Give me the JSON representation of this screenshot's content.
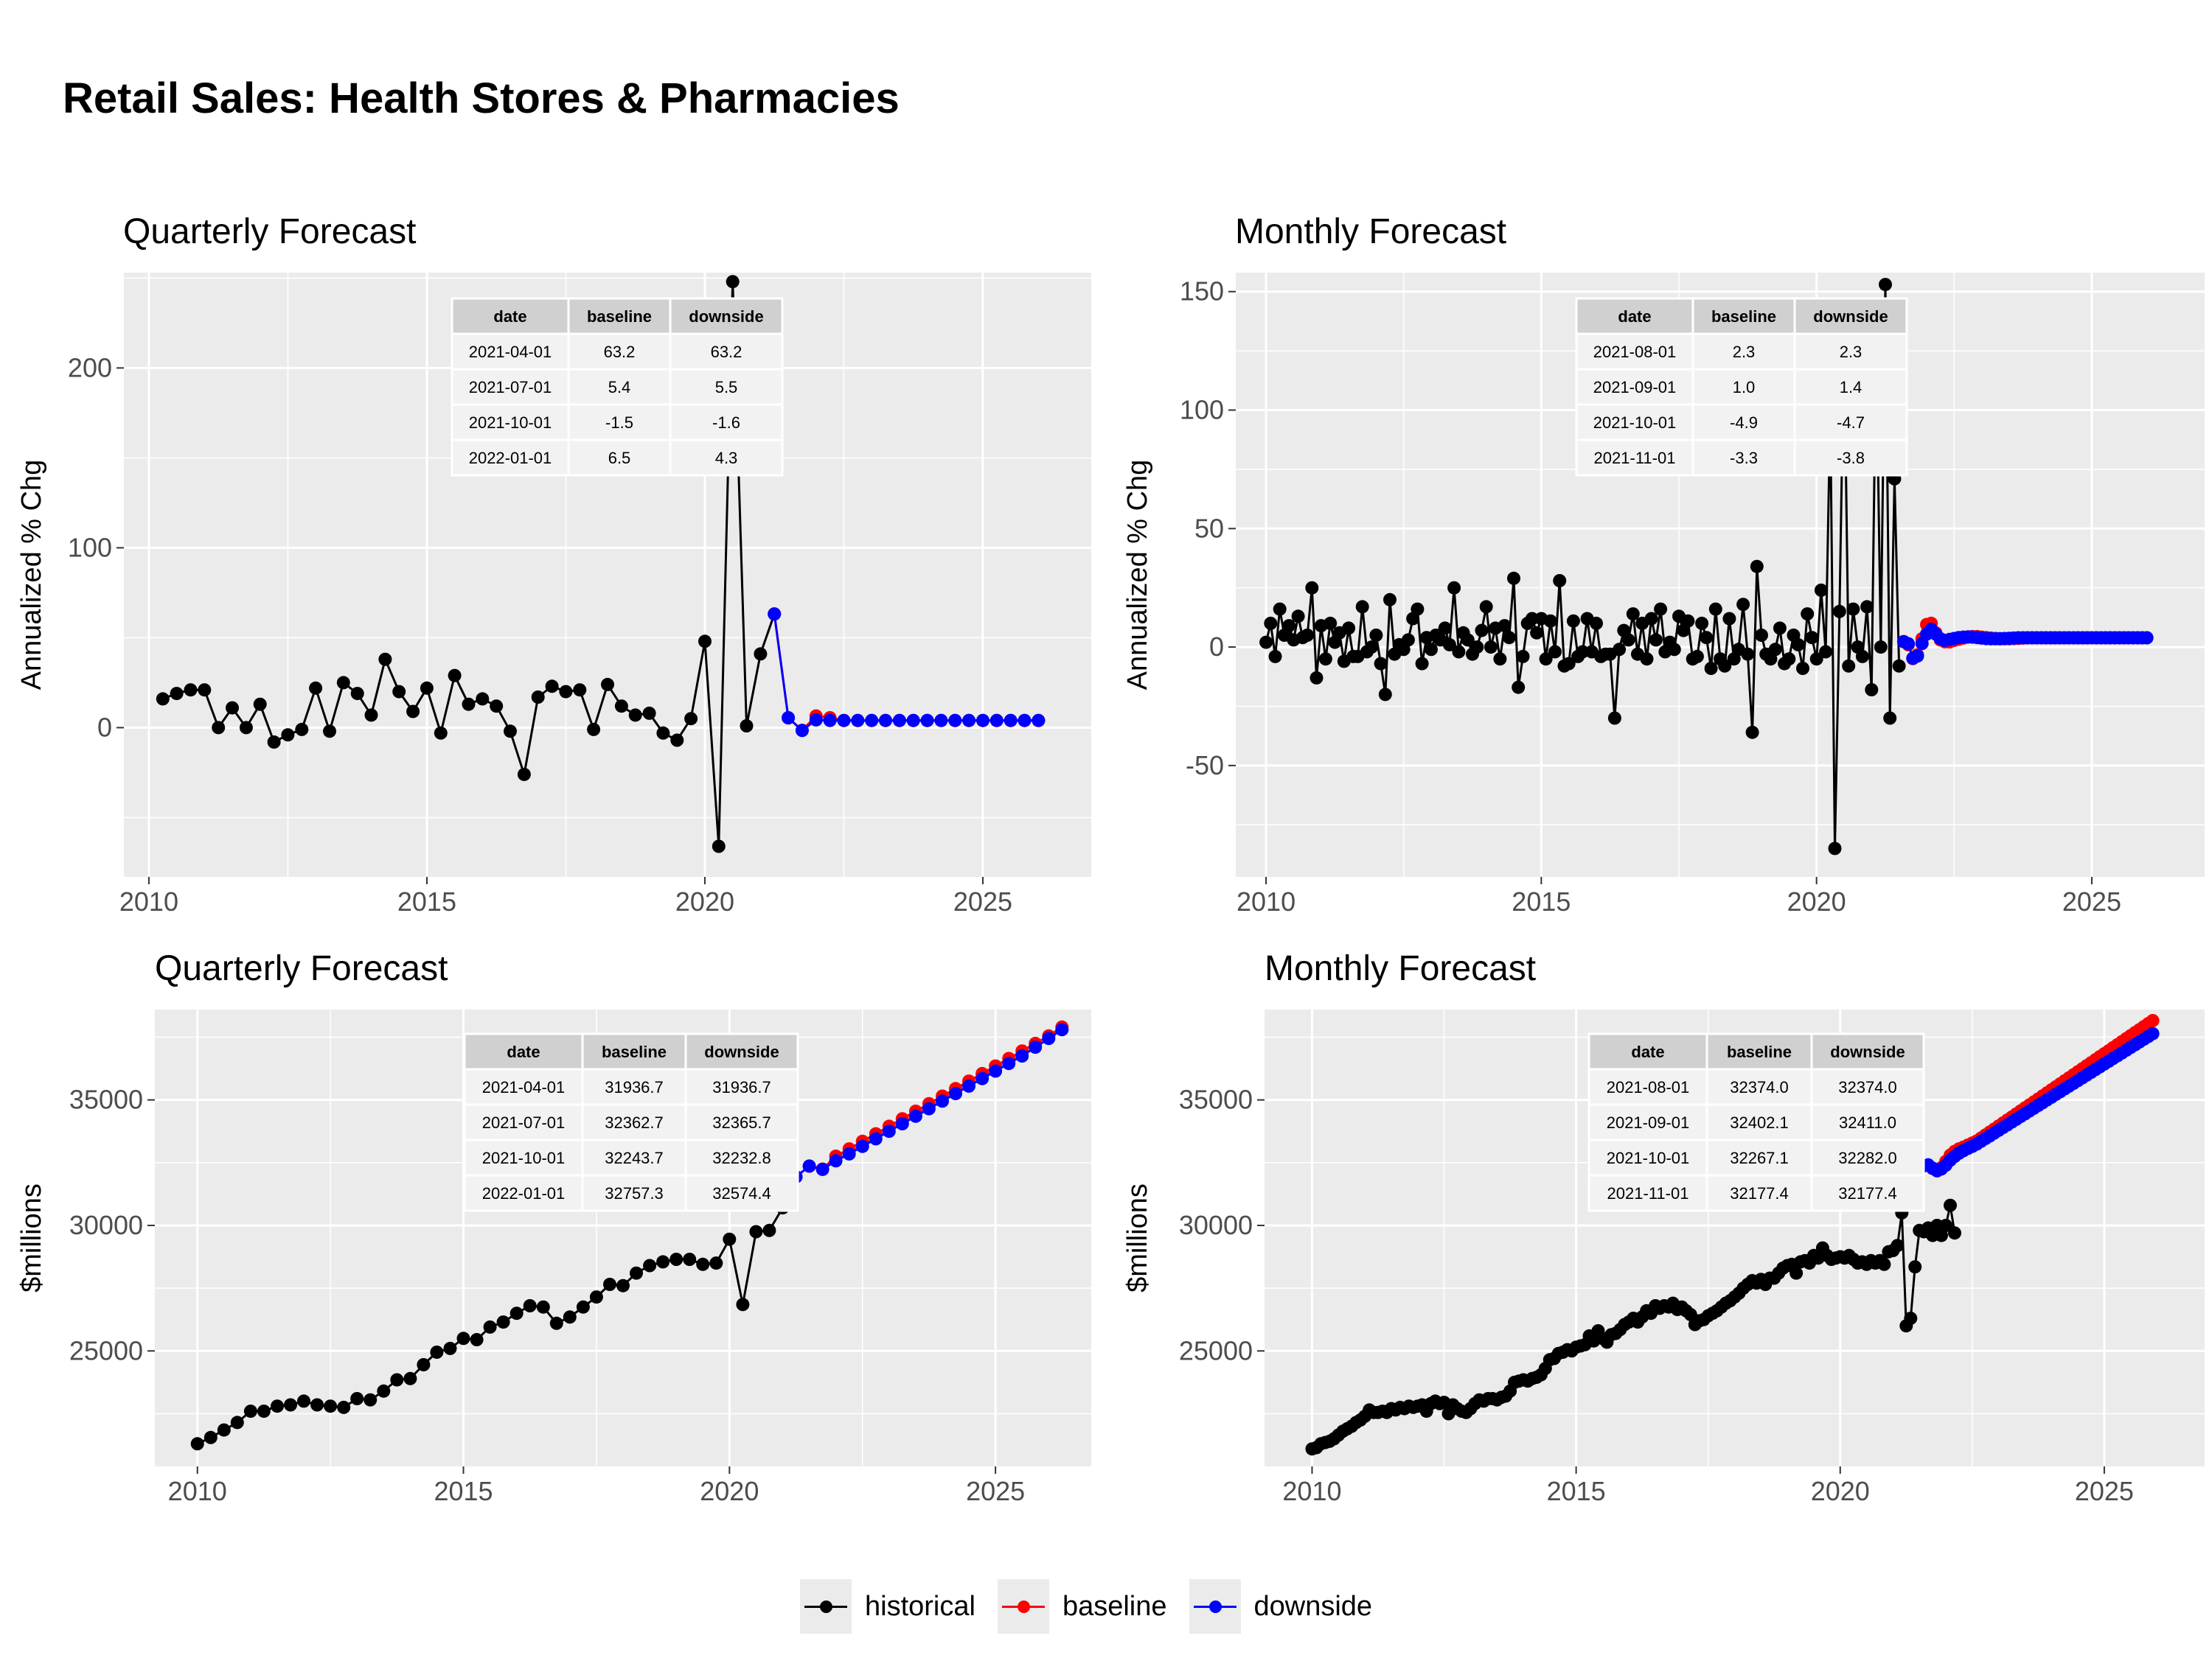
{
  "page": {
    "title": "Retail Sales: Health Stores & Pharmacies"
  },
  "colors": {
    "historical": "#000000",
    "baseline": "#ff0000",
    "downside": "#0000ff",
    "panel_bg": "#ebebeb",
    "grid": "#ffffff"
  },
  "legend": {
    "position": "bottom",
    "items": [
      {
        "label": "historical",
        "color": "#000000"
      },
      {
        "label": "baseline",
        "color": "#ff0000"
      },
      {
        "label": "downside",
        "color": "#0000ff"
      }
    ]
  },
  "chart_data": [
    {
      "id": "q_pct",
      "type": "line",
      "title": "Quarterly Forecast",
      "ylabel": "Annualized % Chg",
      "xlabel": "",
      "x_ticks": [
        2010,
        2015,
        2020,
        2025
      ],
      "y_ticks": [
        0,
        100,
        200
      ],
      "xlim": [
        2009.55,
        2026.95
      ],
      "ylim": [
        -83,
        253
      ],
      "grid": true,
      "series": [
        {
          "name": "historical",
          "color": "#000000",
          "x": [
            2010.25,
            2010.5,
            2010.75,
            2011,
            2011.25,
            2011.5,
            2011.75,
            2012,
            2012.25,
            2012.5,
            2012.75,
            2013,
            2013.25,
            2013.5,
            2013.75,
            2014,
            2014.25,
            2014.5,
            2014.75,
            2015,
            2015.25,
            2015.5,
            2015.75,
            2016,
            2016.25,
            2016.5,
            2016.75,
            2017,
            2017.25,
            2017.5,
            2017.75,
            2018,
            2018.25,
            2018.5,
            2018.75,
            2019,
            2019.25,
            2019.5,
            2019.75,
            2020,
            2020.25,
            2020.5,
            2020.75,
            2021,
            2021.25
          ],
          "y": [
            16,
            19,
            21,
            21,
            0,
            11,
            0,
            13,
            -8,
            -4,
            -1,
            22,
            -2,
            25,
            19,
            7,
            38,
            20,
            9,
            22,
            -3,
            29,
            13,
            16,
            12,
            -2,
            -26,
            17,
            23,
            20,
            21,
            -1,
            24,
            12,
            7,
            8,
            -3,
            -7,
            5,
            48,
            -66,
            248,
            1,
            41,
            63.2
          ]
        },
        {
          "name": "baseline",
          "color": "#ff0000",
          "x": [
            2021.25,
            2021.5,
            2021.75,
            2022,
            2022.25,
            2022.5,
            2022.75,
            2023,
            2023.25,
            2023.5,
            2023.75,
            2024,
            2024.25,
            2024.5,
            2024.75,
            2025,
            2025.25,
            2025.5,
            2025.75,
            2026
          ],
          "y": [
            63.2,
            5.4,
            -1.5,
            6.5,
            5.5,
            4,
            4,
            4,
            4,
            4,
            4,
            4,
            4,
            4,
            4,
            4,
            4,
            4,
            4,
            4
          ]
        },
        {
          "name": "downside",
          "color": "#0000ff",
          "x": [
            2021.25,
            2021.5,
            2021.75,
            2022,
            2022.25,
            2022.5,
            2022.75,
            2023,
            2023.25,
            2023.5,
            2023.75,
            2024,
            2024.25,
            2024.5,
            2024.75,
            2025,
            2025.25,
            2025.5,
            2025.75,
            2026
          ],
          "y": [
            63.2,
            5.5,
            -1.6,
            4.3,
            4,
            4,
            4,
            4,
            4,
            4,
            4,
            4,
            4,
            4,
            4,
            4,
            4,
            4,
            4,
            4
          ]
        }
      ],
      "table": {
        "columns": [
          "date",
          "baseline",
          "downside"
        ],
        "rows": [
          [
            "2021-04-01",
            "63.2",
            "63.2"
          ],
          [
            "2021-07-01",
            "5.4",
            "5.5"
          ],
          [
            "2021-10-01",
            "-1.5",
            "-1.6"
          ],
          [
            "2022-01-01",
            "6.5",
            "4.3"
          ]
        ]
      }
    },
    {
      "id": "m_pct",
      "type": "line",
      "title": "Monthly Forecast",
      "ylabel": "Annualized % Chg",
      "xlabel": "",
      "x_ticks": [
        2010,
        2015,
        2020,
        2025
      ],
      "y_ticks": [
        -50,
        0,
        50,
        100,
        150
      ],
      "xlim": [
        2009.45,
        2027.05
      ],
      "ylim": [
        -97,
        158
      ],
      "grid": true,
      "series": [
        {
          "name": "historical",
          "color": "#000000",
          "x_start": 2010,
          "x_step": 0.0833333,
          "y": [
            2,
            10,
            -4,
            16,
            5,
            9,
            3,
            13,
            4,
            5,
            25,
            -13,
            9,
            -5,
            10,
            2,
            6,
            -6,
            8,
            -4,
            -4,
            17,
            -2,
            0,
            5,
            -7,
            -20,
            20,
            -3,
            1,
            -1,
            3,
            12,
            16,
            -7,
            4,
            -1,
            5,
            3,
            8,
            1,
            25,
            -2,
            6,
            3,
            -3,
            0,
            7,
            17,
            0,
            8,
            -5,
            9,
            4,
            29,
            -17,
            -4,
            10,
            12,
            6,
            12,
            -5,
            11,
            -2,
            28,
            -8,
            -7,
            11,
            -4,
            -2,
            12,
            -2,
            10,
            -4,
            -3,
            -3,
            -30,
            -1,
            7,
            3,
            14,
            -3,
            10,
            -5,
            12,
            3,
            16,
            -2,
            2,
            -1,
            13,
            7,
            11,
            -5,
            -4,
            10,
            4,
            -9,
            16,
            -5,
            -8,
            12,
            -5,
            -1,
            18,
            -3,
            -36,
            34,
            5,
            -3,
            -5,
            -1,
            8,
            -7,
            -5,
            5,
            1,
            -9,
            14,
            4,
            -5,
            24,
            -2,
            100,
            -85,
            15,
            132,
            -8,
            16,
            0,
            -4,
            17,
            -18,
            130,
            0,
            153,
            -30,
            71,
            -8
          ]
        },
        {
          "name": "baseline",
          "color": "#ff0000",
          "x_start": 2021.5833,
          "x_step": 0.0833333,
          "y": [
            2.3,
            1.0,
            -4.9,
            -3.3,
            3.5,
            9.5,
            10,
            6,
            3,
            2.2,
            2.2,
            2.8,
            3.3,
            3.8,
            4.2,
            4.4,
            4.4,
            4.2,
            4,
            3.8,
            3.6,
            3.5,
            3.5,
            3.5,
            3.6,
            3.7,
            3.8,
            3.9,
            3.9,
            3.9,
            3.9,
            3.9,
            3.9,
            3.9,
            3.9,
            3.9,
            3.9,
            3.9,
            3.9,
            3.9,
            3.9,
            3.9,
            3.9,
            3.9,
            3.9,
            3.9,
            3.9,
            3.9,
            3.9,
            3.9,
            3.9,
            3.9,
            3.9,
            3.9
          ]
        },
        {
          "name": "downside",
          "color": "#0000ff",
          "x_start": 2021.5833,
          "x_step": 0.0833333,
          "y": [
            2.3,
            1.4,
            -4.7,
            -3.8,
            1.5,
            5.5,
            7.5,
            5.5,
            3.5,
            2.8,
            3.2,
            3.6,
            4,
            4.2,
            4.3,
            4.2,
            4,
            3.8,
            3.6,
            3.5,
            3.5,
            3.5,
            3.6,
            3.7,
            3.8,
            3.9,
            3.9,
            3.9,
            3.9,
            3.9,
            3.9,
            3.9,
            3.9,
            3.9,
            3.9,
            3.9,
            3.9,
            3.9,
            3.9,
            3.9,
            3.9,
            3.9,
            3.9,
            3.9,
            3.9,
            3.9,
            3.9,
            3.9,
            3.9,
            3.9,
            3.9,
            3.9,
            3.9,
            3.9
          ]
        }
      ],
      "table": {
        "columns": [
          "date",
          "baseline",
          "downside"
        ],
        "rows": [
          [
            "2021-08-01",
            "2.3",
            "2.3"
          ],
          [
            "2021-09-01",
            "1.0",
            "1.4"
          ],
          [
            "2021-10-01",
            "-4.9",
            "-4.7"
          ],
          [
            "2021-11-01",
            "-3.3",
            "-3.8"
          ]
        ]
      }
    },
    {
      "id": "q_lvl",
      "type": "line",
      "title": "Quarterly Forecast",
      "ylabel": "$millions",
      "xlabel": "",
      "x_ticks": [
        2010,
        2015,
        2020,
        2025
      ],
      "y_ticks": [
        25000,
        30000,
        35000
      ],
      "xlim": [
        2009.2,
        2026.8
      ],
      "ylim": [
        20400,
        38600
      ],
      "grid": true,
      "series": [
        {
          "name": "historical",
          "color": "#000000",
          "x_start": 2010,
          "x_step": 0.25,
          "y": [
            21300,
            21550,
            21850,
            22150,
            22600,
            22600,
            22800,
            22850,
            23000,
            22850,
            22800,
            22750,
            23100,
            23050,
            23400,
            23850,
            23900,
            24450,
            24950,
            25100,
            25500,
            25450,
            25950,
            26150,
            26500,
            26800,
            26750,
            26100,
            26350,
            26750,
            27150,
            27650,
            27600,
            28100,
            28400,
            28550,
            28650,
            28650,
            28450,
            28500,
            29450,
            26850,
            29750,
            29800,
            30700,
            31936.7
          ]
        },
        {
          "name": "baseline",
          "color": "#ff0000",
          "x_start": 2021.25,
          "x_step": 0.25,
          "y": [
            31936.7,
            32362.7,
            32243.7,
            32757.3,
            33050,
            33350,
            33650,
            33950,
            34250,
            34550,
            34850,
            35150,
            35450,
            35750,
            36050,
            36350,
            36650,
            36950,
            37250,
            37550,
            37900
          ]
        },
        {
          "name": "downside",
          "color": "#0000ff",
          "x_start": 2021.25,
          "x_step": 0.25,
          "y": [
            31936.7,
            32365.7,
            32232.8,
            32574.4,
            32850,
            33150,
            33450,
            33750,
            34050,
            34350,
            34650,
            34950,
            35250,
            35550,
            35850,
            36150,
            36450,
            36750,
            37100,
            37450,
            37800
          ]
        }
      ],
      "table": {
        "columns": [
          "date",
          "baseline",
          "downside"
        ],
        "rows": [
          [
            "2021-04-01",
            "31936.7",
            "31936.7"
          ],
          [
            "2021-07-01",
            "32362.7",
            "32365.7"
          ],
          [
            "2021-10-01",
            "32243.7",
            "32232.8"
          ],
          [
            "2022-01-01",
            "32757.3",
            "32574.4"
          ]
        ]
      }
    },
    {
      "id": "m_lvl",
      "type": "line",
      "title": "Monthly Forecast",
      "ylabel": "$millions",
      "xlabel": "",
      "x_ticks": [
        2010,
        2015,
        2020,
        2025
      ],
      "y_ticks": [
        25000,
        30000,
        35000
      ],
      "xlim": [
        2009.1,
        2026.9
      ],
      "ylim": [
        20400,
        38600
      ],
      "grid": true,
      "series": [
        {
          "name": "historical",
          "color": "#000000",
          "x_start": 2010,
          "x_step": 0.0833333,
          "y": [
            21100,
            21150,
            21300,
            21350,
            21400,
            21500,
            21650,
            21800,
            21900,
            22000,
            22150,
            22250,
            22400,
            22650,
            22550,
            22550,
            22600,
            22550,
            22700,
            22650,
            22750,
            22700,
            22800,
            22750,
            22800,
            22850,
            22600,
            22900,
            23000,
            22900,
            22950,
            22500,
            22850,
            22700,
            22600,
            22550,
            22700,
            22900,
            23050,
            23000,
            23100,
            23100,
            23050,
            23150,
            23200,
            23400,
            23750,
            23800,
            23850,
            23800,
            23900,
            23950,
            24050,
            24300,
            24650,
            24700,
            24900,
            24950,
            25050,
            25000,
            25150,
            25200,
            25250,
            25600,
            25400,
            25800,
            25500,
            25350,
            25650,
            25700,
            25850,
            26050,
            26150,
            26300,
            26150,
            26350,
            26600,
            26500,
            26800,
            26700,
            26800,
            26750,
            26900,
            26650,
            26750,
            26600,
            26450,
            26050,
            26200,
            26250,
            26400,
            26500,
            26600,
            26750,
            26900,
            27000,
            27150,
            27300,
            27500,
            27650,
            27800,
            27700,
            27850,
            27650,
            27900,
            27900,
            28100,
            28300,
            28400,
            28450,
            28100,
            28550,
            28600,
            28500,
            28800,
            28700,
            29100,
            28800,
            28650,
            28700,
            28750,
            28700,
            28800,
            28650,
            28500,
            28550,
            28450,
            28600,
            28500,
            28600,
            28450,
            28950,
            29000,
            29200,
            30500,
            26000,
            26300,
            28350,
            29800,
            29750,
            29900,
            29600,
            30000,
            29600,
            30000,
            30800,
            29700
          ]
        },
        {
          "name": "baseline",
          "color": "#ff0000",
          "x_start": 2021.5833,
          "x_step": 0.0833333,
          "y": [
            32374.0,
            32402.1,
            32267.1,
            32177.4,
            32300,
            32550,
            32800,
            32950,
            33050,
            33120,
            33200,
            33280,
            33360,
            33480,
            33600,
            33720,
            33840,
            33960,
            34080,
            34200,
            34320,
            34440,
            34560,
            34680,
            34800,
            34920,
            35040,
            35160,
            35280,
            35400,
            35520,
            35640,
            35760,
            35880,
            36000,
            36120,
            36240,
            36360,
            36480,
            36600,
            36720,
            36840,
            36960,
            37080,
            37200,
            37320,
            37440,
            37560,
            37680,
            37800,
            37920,
            38040,
            38160
          ]
        },
        {
          "name": "downside",
          "color": "#0000ff",
          "x_start": 2021.5833,
          "x_step": 0.0833333,
          "y": [
            32374.0,
            32411.0,
            32282.0,
            32177.4,
            32250,
            32400,
            32600,
            32750,
            32880,
            32980,
            33070,
            33150,
            33240,
            33350,
            33460,
            33570,
            33680,
            33790,
            33900,
            34010,
            34120,
            34230,
            34340,
            34450,
            34560,
            34670,
            34780,
            34890,
            35000,
            35110,
            35220,
            35330,
            35440,
            35550,
            35660,
            35770,
            35880,
            35990,
            36100,
            36210,
            36320,
            36430,
            36540,
            36650,
            36760,
            36870,
            36980,
            37090,
            37200,
            37310,
            37420,
            37530,
            37640
          ]
        }
      ],
      "table": {
        "columns": [
          "date",
          "baseline",
          "downside"
        ],
        "rows": [
          [
            "2021-08-01",
            "32374.0",
            "32374.0"
          ],
          [
            "2021-09-01",
            "32402.1",
            "32411.0"
          ],
          [
            "2021-10-01",
            "32267.1",
            "32282.0"
          ],
          [
            "2021-11-01",
            "32177.4",
            "32177.4"
          ]
        ]
      }
    }
  ]
}
